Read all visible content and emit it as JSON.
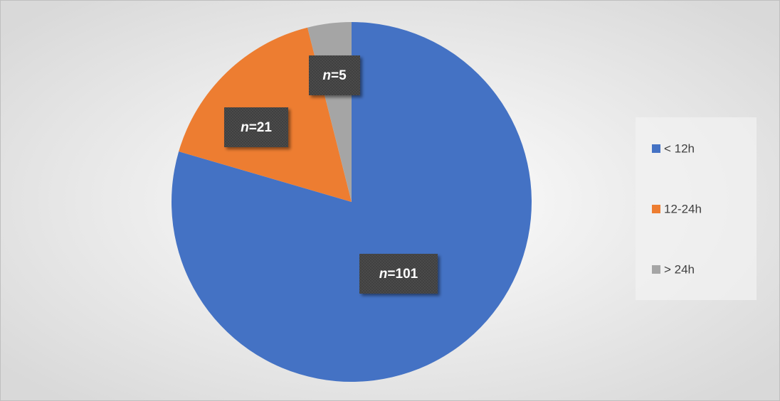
{
  "chart_data": {
    "type": "pie",
    "categories": [
      "< 12h",
      "12-24h",
      "> 24h"
    ],
    "values": [
      101,
      21,
      5
    ],
    "value_labels": [
      "n=101",
      "n=21",
      "n=5"
    ],
    "colors": [
      "#4472c4",
      "#ed7d31",
      "#a5a5a5"
    ],
    "legend": "right"
  }
}
